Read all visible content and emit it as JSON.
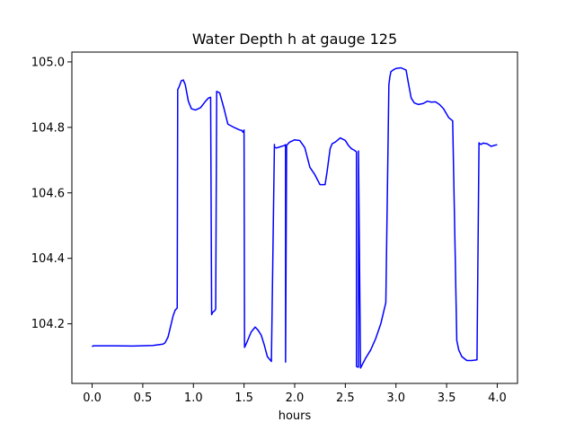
{
  "chart_data": {
    "type": "line",
    "title": "Water Depth h at gauge 125",
    "xlabel": "hours",
    "ylabel": "",
    "xlim": [
      -0.2,
      4.2
    ],
    "ylim": [
      104.018,
      105.03
    ],
    "xticks": [
      0.0,
      0.5,
      1.0,
      1.5,
      2.0,
      2.5,
      3.0,
      3.5,
      4.0
    ],
    "xtick_labels": [
      "0.0",
      "0.5",
      "1.0",
      "1.5",
      "2.0",
      "2.5",
      "3.0",
      "3.5",
      "4.0"
    ],
    "yticks": [
      104.2,
      104.4,
      104.6,
      104.8,
      105.0
    ],
    "ytick_labels": [
      "104.2",
      "104.4",
      "104.6",
      "104.8",
      "105.0"
    ],
    "grid": false,
    "series": [
      {
        "color": "#0000ff",
        "x": [
          0.0,
          0.01,
          0.2,
          0.4,
          0.6,
          0.7,
          0.72,
          0.75,
          0.8,
          0.82,
          0.84,
          0.845,
          0.86,
          0.88,
          0.9,
          0.92,
          0.95,
          0.98,
          1.02,
          1.07,
          1.12,
          1.15,
          1.17,
          1.18,
          1.19,
          1.21,
          1.22,
          1.23,
          1.26,
          1.3,
          1.34,
          1.4,
          1.45,
          1.48,
          1.49,
          1.5,
          1.505,
          1.53,
          1.57,
          1.61,
          1.64,
          1.67,
          1.7,
          1.73,
          1.77,
          1.8,
          1.8,
          1.82,
          1.85,
          1.9,
          1.91,
          1.91,
          1.92,
          1.95,
          2.0,
          2.05,
          2.1,
          2.15,
          2.2,
          2.25,
          2.3,
          2.32,
          2.35,
          2.37,
          2.4,
          2.45,
          2.5,
          2.53,
          2.56,
          2.59,
          2.61,
          2.61,
          2.62,
          2.63,
          2.63,
          2.65,
          2.7,
          2.75,
          2.8,
          2.85,
          2.9,
          2.93,
          2.94,
          2.95,
          2.97,
          3.0,
          3.05,
          3.1,
          3.12,
          3.15,
          3.18,
          3.22,
          3.27,
          3.31,
          3.35,
          3.39,
          3.43,
          3.47,
          3.52,
          3.56,
          3.6,
          3.6,
          3.62,
          3.65,
          3.7,
          3.75,
          3.8,
          3.82,
          3.82,
          3.83,
          3.84,
          3.86,
          3.9,
          3.94,
          3.97,
          4.0
        ],
        "y": [
          104.13,
          104.133,
          104.133,
          104.132,
          104.134,
          104.138,
          104.142,
          104.16,
          104.225,
          104.242,
          104.248,
          104.915,
          104.925,
          104.942,
          104.945,
          104.93,
          104.88,
          104.857,
          104.853,
          104.86,
          104.88,
          104.89,
          104.892,
          104.228,
          104.235,
          104.24,
          104.245,
          104.91,
          104.905,
          104.86,
          104.81,
          104.8,
          104.793,
          104.79,
          104.785,
          104.792,
          104.128,
          104.145,
          104.175,
          104.19,
          104.18,
          104.165,
          104.135,
          104.1,
          104.085,
          104.748,
          104.74,
          104.737,
          104.74,
          104.745,
          104.747,
          104.083,
          104.745,
          104.755,
          104.762,
          104.76,
          104.738,
          104.678,
          104.655,
          104.625,
          104.625,
          104.665,
          104.735,
          104.75,
          104.755,
          104.768,
          104.76,
          104.745,
          104.735,
          104.73,
          104.725,
          104.07,
          104.068,
          104.068,
          104.728,
          104.065,
          104.095,
          104.12,
          104.155,
          104.2,
          104.265,
          104.93,
          104.955,
          104.97,
          104.975,
          104.98,
          104.982,
          104.975,
          104.94,
          104.89,
          104.875,
          104.87,
          104.873,
          104.88,
          104.877,
          104.878,
          104.87,
          104.857,
          104.83,
          104.82,
          104.16,
          104.15,
          104.12,
          104.1,
          104.088,
          104.088,
          104.09,
          104.753,
          104.752,
          104.75,
          104.748,
          104.752,
          104.75,
          104.742,
          104.745,
          104.747
        ]
      }
    ]
  }
}
